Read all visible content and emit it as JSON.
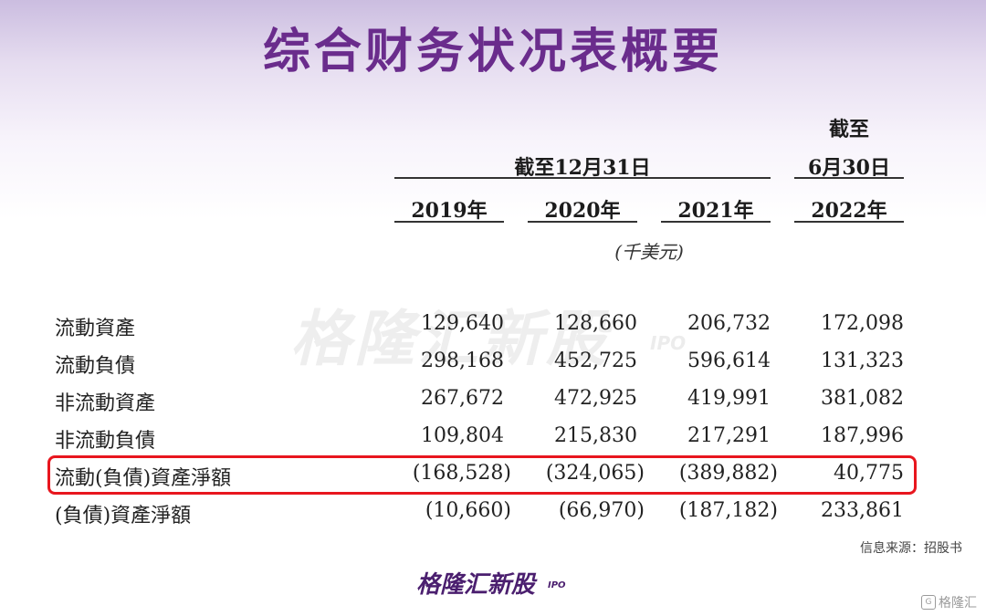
{
  "title": "综合财务状况表概要",
  "header": {
    "group_label": "截至12月31日",
    "last_label_line1": "截至",
    "last_label_line2": "6月30日",
    "years": [
      "2019年",
      "2020年",
      "2021年",
      "2022年"
    ],
    "unit": "(千美元)"
  },
  "rows": [
    {
      "label": "流動資產",
      "values": [
        "129,640",
        "128,660",
        "206,732",
        "172,098"
      ]
    },
    {
      "label": "流動負債",
      "values": [
        "298,168",
        "452,725",
        "596,614",
        "131,323"
      ]
    },
    {
      "label": "非流動資產",
      "values": [
        "267,672",
        "472,925",
        "419,991",
        "381,082"
      ]
    },
    {
      "label": "非流動負債",
      "values": [
        "109,804",
        "215,830",
        "217,291",
        "187,996"
      ]
    },
    {
      "label": "流動(負債)資產淨額",
      "values": [
        "(168,528)",
        "(324,065)",
        "(389,882)",
        "40,775"
      ],
      "highlighted": true
    },
    {
      "label": "(負債)資產淨額",
      "values": [
        "(10,660)",
        "(66,970)",
        "(187,182)",
        "233,861"
      ]
    }
  ],
  "highlight_color": "#e8161e",
  "watermark": {
    "text": "格隆汇新股",
    "suffix": "IPO"
  },
  "source_note": "信息来源：招股书",
  "brand": {
    "text": "格隆汇新股",
    "suffix": "IPO"
  },
  "corner_brand": {
    "icon": "G",
    "text": "格隆汇"
  }
}
